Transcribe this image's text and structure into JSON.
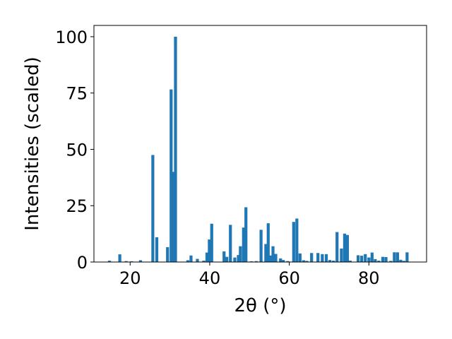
{
  "chart_data": {
    "type": "bar",
    "xlabel": "2θ (°)",
    "ylabel": "Intensities (scaled)",
    "xlim": [
      10.9,
      94.5
    ],
    "ylim": [
      0,
      105
    ],
    "xticks": [
      20,
      40,
      60,
      80
    ],
    "yticks": [
      0,
      25,
      50,
      75,
      100
    ],
    "grid": false,
    "bar_color": "#1f77b4",
    "bar_width": 0.75,
    "x": [
      14.8,
      17.4,
      19.0,
      20.4,
      22.6,
      25.7,
      26.7,
      29.4,
      30.3,
      30.8,
      31.4,
      34.5,
      35.3,
      36.9,
      38.5,
      39.3,
      39.9,
      40.5,
      43.6,
      44.3,
      45.2,
      46.3,
      47.2,
      47.7,
      48.5,
      49.1,
      50.5,
      51.7,
      52.9,
      54.1,
      54.7,
      55.3,
      55.9,
      56.6,
      57.8,
      58.5,
      59.6,
      61.1,
      61.9,
      62.7,
      63.6,
      64.4,
      65.6,
      67.2,
      68.3,
      69.3,
      70.2,
      71.1,
      72.0,
      73.1,
      73.9,
      74.6,
      75.3,
      77.3,
      78.2,
      79.1,
      80.0,
      80.8,
      81.6,
      82.5,
      83.5,
      84.3,
      85.5,
      86.4,
      87.2,
      88.0,
      88.8,
      89.6
    ],
    "values": [
      0.6,
      3.4,
      0.4,
      0.3,
      0.8,
      47.5,
      11.0,
      6.6,
      76.6,
      40.0,
      100.0,
      0.8,
      2.9,
      1.4,
      0.6,
      4.2,
      10.0,
      17.0,
      4.7,
      2.3,
      16.5,
      2.0,
      3.1,
      7.0,
      15.3,
      24.3,
      0.3,
      0.4,
      14.3,
      8.0,
      17.2,
      2.9,
      7.0,
      3.6,
      1.6,
      0.9,
      0.4,
      17.8,
      19.3,
      3.8,
      0.8,
      0.5,
      4.0,
      4.0,
      3.5,
      3.5,
      0.9,
      0.6,
      13.3,
      6.0,
      12.6,
      12.0,
      0.6,
      3.0,
      2.8,
      3.5,
      2.0,
      4.2,
      1.3,
      0.6,
      2.3,
      2.2,
      0.5,
      4.3,
      4.3,
      1.0,
      0.5,
      4.3
    ]
  }
}
